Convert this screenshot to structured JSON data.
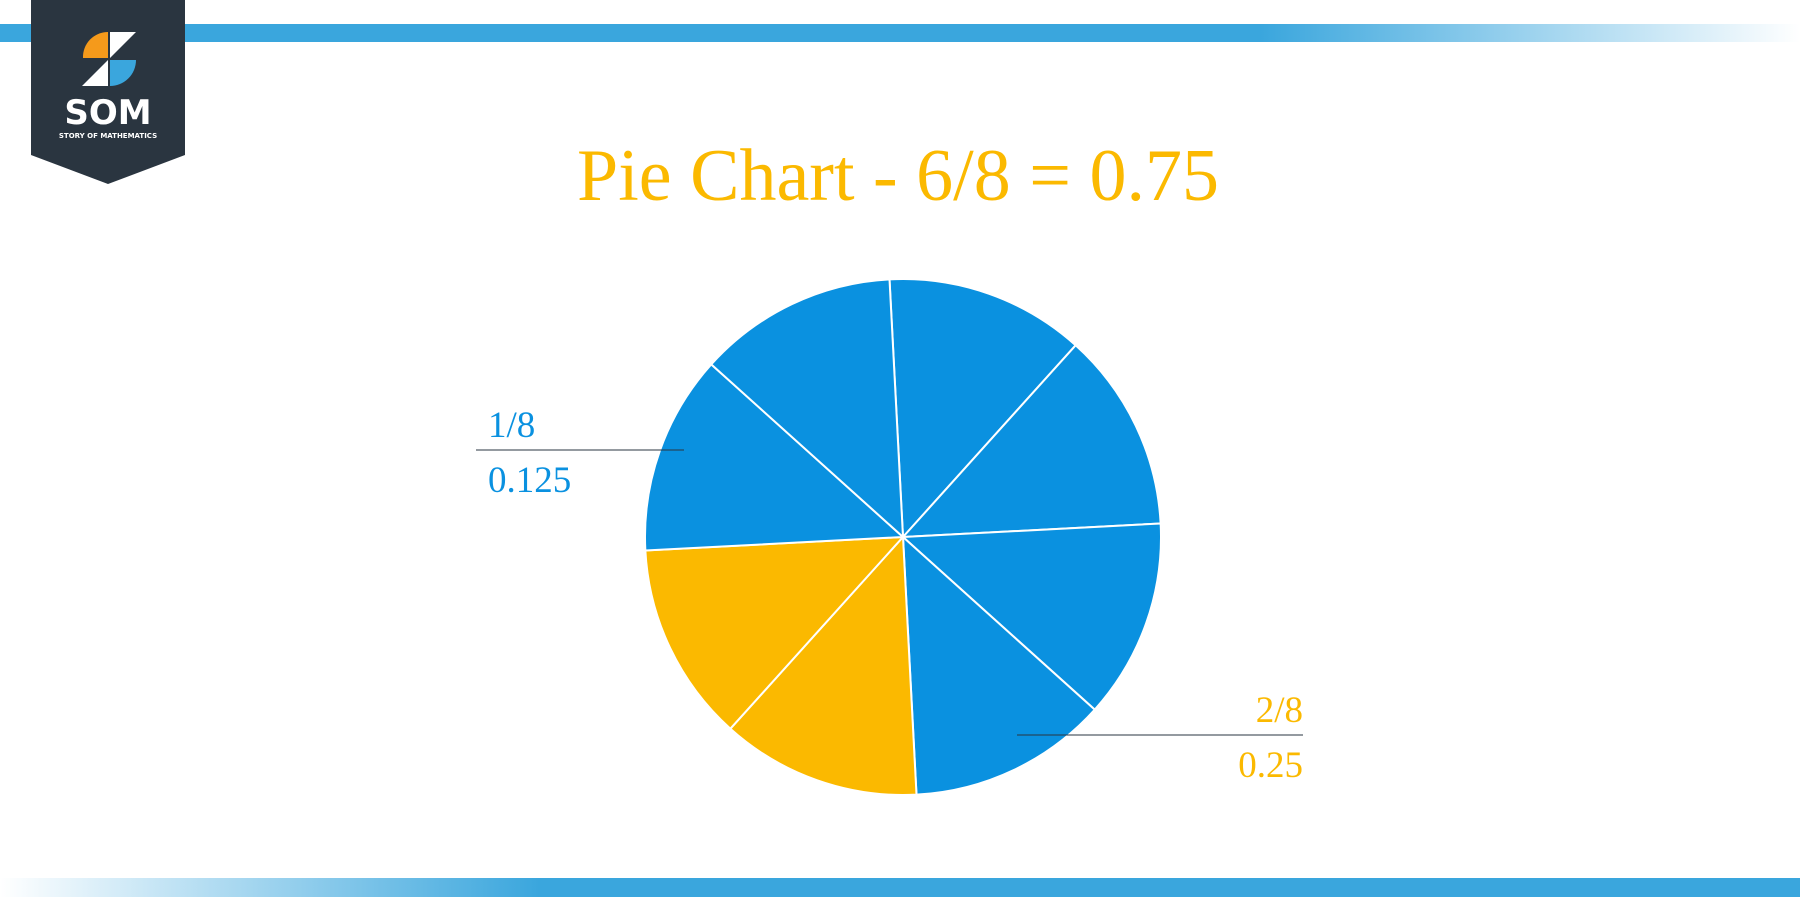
{
  "logo": {
    "name": "SOM",
    "tagline": "STORY OF MATHEMATICS"
  },
  "chart_data": {
    "type": "pie",
    "title": "Pie Chart - 6/8 = 0.75",
    "values": [
      0.125,
      0.125,
      0.125,
      0.125,
      0.125,
      0.125,
      0.125,
      0.125
    ],
    "colors": [
      "#0a91e0",
      "#0a91e0",
      "#0a91e0",
      "#0a91e0",
      "#fbb900",
      "#fbb900",
      "#0a91e0",
      "#0a91e0"
    ],
    "annotations": [
      {
        "fraction": "1/8",
        "decimal": "0.125",
        "color": "#0a91e0"
      },
      {
        "fraction": "2/8",
        "decimal": "0.25",
        "color": "#fbb900"
      }
    ]
  }
}
